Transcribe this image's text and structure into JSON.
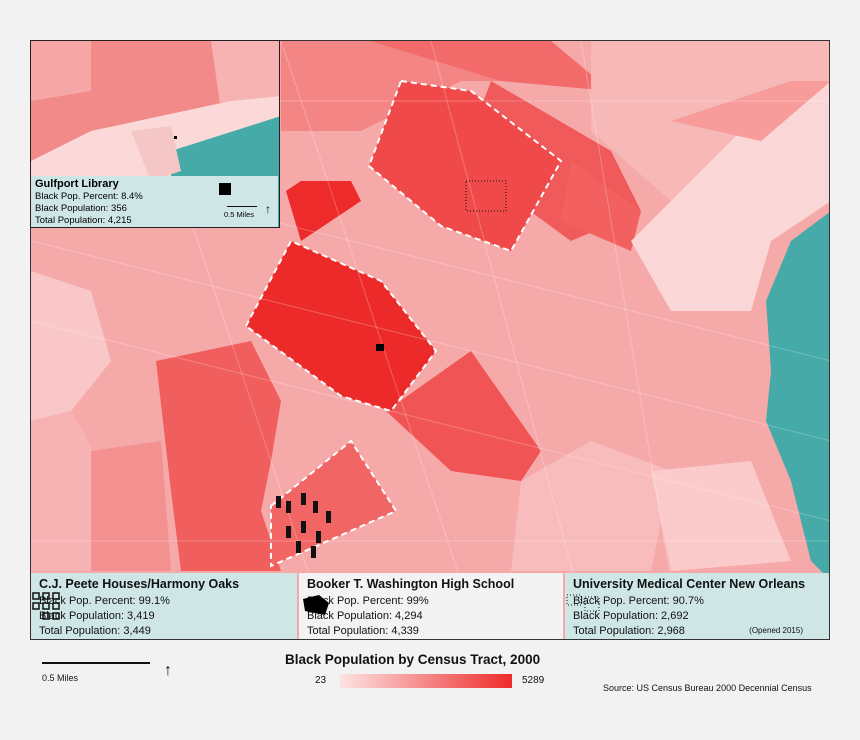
{
  "legend": {
    "title": "Black Population by Census Tract, 2000",
    "min": "23",
    "max": "5289",
    "color_low": "#fde3e3",
    "color_high": "#ee2b2b"
  },
  "scale": {
    "label": "0.5 Miles"
  },
  "source": "Source: US Census Bureau 2000 Decennial Census",
  "inset": {
    "title": "Gulfport Library",
    "percent": "Black Pop. Percent: 8.4%",
    "black_pop": "Black Population: 356",
    "total_pop": "Total Population: 4,215",
    "scale_label": "0.5 Miles"
  },
  "sites": [
    {
      "title": "C.J. Peete Houses/Harmony Oaks",
      "percent": "Black Pop. Percent: 99.1%",
      "black_pop": "Black Population: 3,419",
      "total_pop": "Total Population: 3,449"
    },
    {
      "title": "Booker T. Washington High School",
      "percent": "Black Pop. Percent: 99%",
      "black_pop": "Black Population: 4,294",
      "total_pop": "Total Population: 4,339"
    },
    {
      "title": "University Medical Center New Orleans",
      "percent": "Black Pop. Percent: 90.7%",
      "black_pop": "Black Population: 2,692",
      "total_pop": "Total Population: 2,968",
      "note": "(Opened 2015)"
    }
  ],
  "colors": {
    "water": "#45aaa8",
    "panel_bg": "#cfe6e6"
  }
}
